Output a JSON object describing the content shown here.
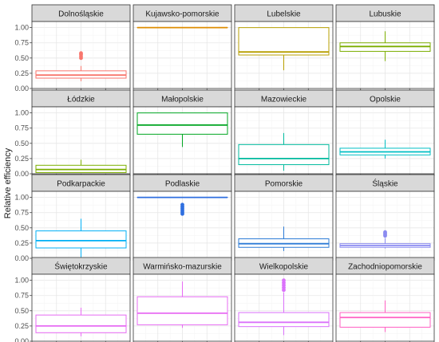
{
  "chart_data": {
    "type": "boxplot",
    "ylabel": "Relative  efficiency",
    "ylim": [
      0,
      1.1
    ],
    "yticks": [
      "0.00",
      "0.25",
      "0.50",
      "0.75",
      "1.00"
    ],
    "grid": true,
    "legend": "none",
    "panels": [
      {
        "name": "Dolnośląskie",
        "color": "#F8766D",
        "min": 0.12,
        "q1": 0.17,
        "median": 0.22,
        "q3": 0.29,
        "max": 0.37,
        "outliers": [
          0.5,
          0.53,
          0.56,
          0.58
        ]
      },
      {
        "name": "Kujawsko-pomorskie",
        "color": "#DE8C00",
        "min": 1.0,
        "q1": 1.0,
        "median": 1.0,
        "q3": 1.0,
        "max": 1.0,
        "outliers": []
      },
      {
        "name": "Lubelskie",
        "color": "#B79F00",
        "min": 0.3,
        "q1": 0.55,
        "median": 0.6,
        "q3": 1.0,
        "max": 1.0,
        "outliers": []
      },
      {
        "name": "Lubuskie",
        "color": "#7CAE00",
        "min": 0.45,
        "q1": 0.61,
        "median": 0.69,
        "q3": 0.75,
        "max": 0.94,
        "outliers": []
      },
      {
        "name": "Łódzkie",
        "color": "#7CAE00",
        "min": 0.02,
        "q1": 0.02,
        "median": 0.07,
        "q3": 0.14,
        "max": 0.23,
        "outliers": []
      },
      {
        "name": "Małopolskie",
        "color": "#00A521",
        "min": 0.44,
        "q1": 0.65,
        "median": 0.8,
        "q3": 1.0,
        "max": 1.0,
        "outliers": []
      },
      {
        "name": "Mazowieckie",
        "color": "#00BA9E",
        "min": 0.05,
        "q1": 0.15,
        "median": 0.25,
        "q3": 0.48,
        "max": 0.67,
        "outliers": []
      },
      {
        "name": "Opolskie",
        "color": "#00BFC4",
        "min": 0.25,
        "q1": 0.31,
        "median": 0.36,
        "q3": 0.42,
        "max": 0.56,
        "outliers": []
      },
      {
        "name": "Podkarpackie",
        "color": "#00B0F6",
        "min": 0.02,
        "q1": 0.17,
        "median": 0.29,
        "q3": 0.45,
        "max": 0.65,
        "outliers": []
      },
      {
        "name": "Podlaskie",
        "color": "#2F6FE0",
        "min": 1.0,
        "q1": 1.0,
        "median": 1.0,
        "q3": 1.0,
        "max": 1.0,
        "outliers": [
          0.73,
          0.76,
          0.79,
          0.82,
          0.85,
          0.88
        ]
      },
      {
        "name": "Pomorskie",
        "color": "#2C7BD6",
        "min": 0.12,
        "q1": 0.18,
        "median": 0.24,
        "q3": 0.32,
        "max": 0.52,
        "outliers": []
      },
      {
        "name": "Śląskie",
        "color": "#8B8BF0",
        "min": 0.16,
        "q1": 0.18,
        "median": 0.21,
        "q3": 0.24,
        "max": 0.33,
        "outliers": [
          0.37,
          0.39,
          0.41,
          0.43
        ]
      },
      {
        "name": "Świętokrzyskie",
        "color": "#E76BF3",
        "min": 0.08,
        "q1": 0.14,
        "median": 0.25,
        "q3": 0.43,
        "max": 0.55,
        "outliers": []
      },
      {
        "name": "Warmińsko-mazurskie",
        "color": "#E76BF3",
        "min": 0.22,
        "q1": 0.27,
        "median": 0.46,
        "q3": 0.73,
        "max": 0.98,
        "outliers": []
      },
      {
        "name": "Wielkopolskie",
        "color": "#DB72FB",
        "min": 0.1,
        "q1": 0.24,
        "median": 0.31,
        "q3": 0.47,
        "max": 0.8,
        "outliers": [
          0.84,
          0.88,
          0.92,
          0.96,
          1.0
        ]
      },
      {
        "name": "Zachodniopomorskie",
        "color": "#FF61C3",
        "min": 0.15,
        "q1": 0.23,
        "median": 0.39,
        "q3": 0.47,
        "max": 0.67,
        "outliers": []
      }
    ]
  }
}
